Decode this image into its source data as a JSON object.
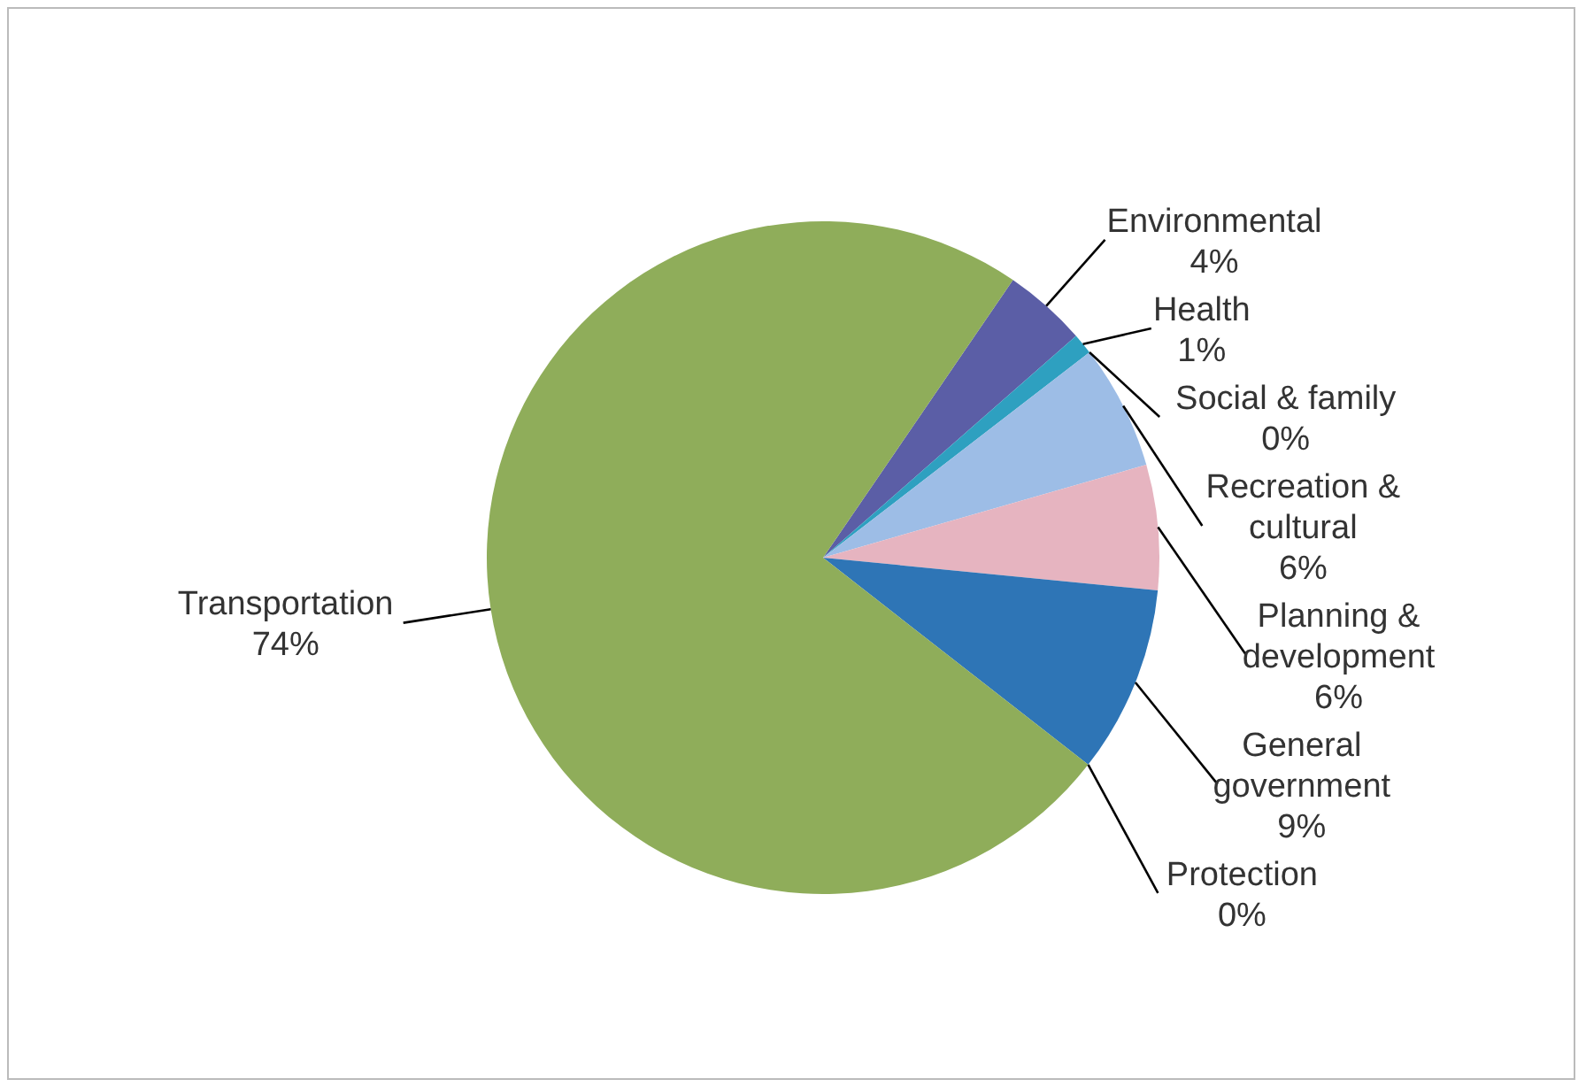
{
  "chart_data": {
    "type": "pie",
    "categories": [
      "Environmental",
      "Health",
      "Social & family",
      "Recreation & cultural",
      "Planning & development",
      "General government",
      "Protection",
      "Transportation"
    ],
    "values": [
      4,
      1,
      0,
      6,
      6,
      9,
      0,
      74
    ],
    "value_labels": [
      "4%",
      "1%",
      "0%",
      "6%",
      "6%",
      "9%",
      "0%",
      "74%"
    ],
    "colors": [
      "#5b5ea6",
      "#2ea0c0",
      "#7f7f7f",
      "#9dbde6",
      "#e6b4c0",
      "#2e75b6",
      "#c0385a",
      "#8fad5a"
    ]
  }
}
